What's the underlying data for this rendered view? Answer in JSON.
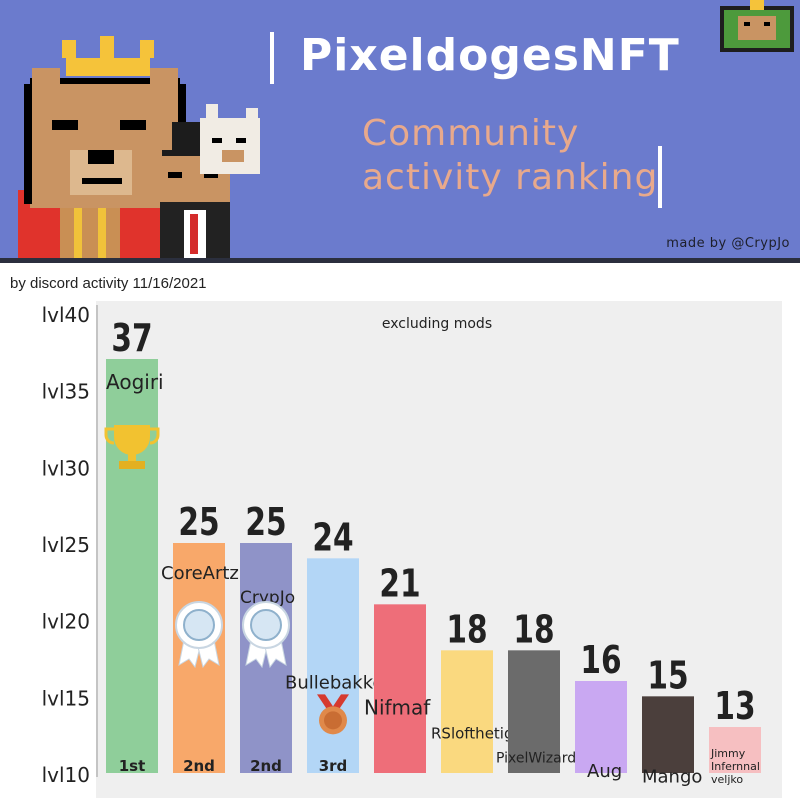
{
  "header": {
    "title": "PixeldogesNFT",
    "subtitle_line1": "Community",
    "subtitle_line2": "activity ranking",
    "credit": "made by @CrypJo"
  },
  "caption": "by discord activity 11/16/2021",
  "colors": {
    "banner": "#6b7bcd",
    "subtitle": "#e8a98c",
    "plot_bg": "#efefef"
  },
  "chart_data": {
    "type": "bar",
    "annotation": "excluding mods",
    "ylim": [
      10,
      40
    ],
    "yticks": [
      {
        "value": 10,
        "label": "lvl10"
      },
      {
        "value": 15,
        "label": "lvl15"
      },
      {
        "value": 20,
        "label": "lvl20"
      },
      {
        "value": 25,
        "label": "lvl25"
      },
      {
        "value": 30,
        "label": "lvl30"
      },
      {
        "value": 35,
        "label": "lvl35"
      },
      {
        "value": 40,
        "label": "lvl40"
      }
    ],
    "grid": false,
    "bars": [
      {
        "name": "Aogiri",
        "value": 37,
        "value_label": "37",
        "rank": "1st",
        "color": "#8fce9a",
        "award": "trophy"
      },
      {
        "name": "CoreArtz",
        "value": 25,
        "value_label": "25",
        "rank": "2nd",
        "color": "#f8a86a",
        "award": "ribbon"
      },
      {
        "name": "CrypJo",
        "value": 25,
        "value_label": "25",
        "rank": "2nd",
        "color": "#8f93c8",
        "award": "ribbon"
      },
      {
        "name": "Bullebakkes",
        "value": 24,
        "value_label": "24",
        "rank": "3rd",
        "color": "#b3d6f6",
        "award": "medal"
      },
      {
        "name": "Nifmaf",
        "value": 21,
        "value_label": "21",
        "rank": "",
        "color": "#ee6e79",
        "award": ""
      },
      {
        "name": "RSlofthetiger",
        "value": 18,
        "value_label": "18",
        "rank": "",
        "color": "#fad97f",
        "award": ""
      },
      {
        "name": "PixelWizard",
        "value": 18,
        "value_label": "18",
        "rank": "",
        "color": "#6b6b6b",
        "award": ""
      },
      {
        "name": "Aug",
        "value": 16,
        "value_label": "16",
        "rank": "",
        "color": "#c9a8f2",
        "award": ""
      },
      {
        "name": "Mango",
        "value": 15,
        "value_label": "15",
        "rank": "",
        "color": "#4b3f3c",
        "award": ""
      },
      {
        "name": "Jimmy Infernnal veljko",
        "value": 13,
        "value_label": "13",
        "rank": "",
        "color": "#f6bfc1",
        "award": ""
      }
    ]
  }
}
